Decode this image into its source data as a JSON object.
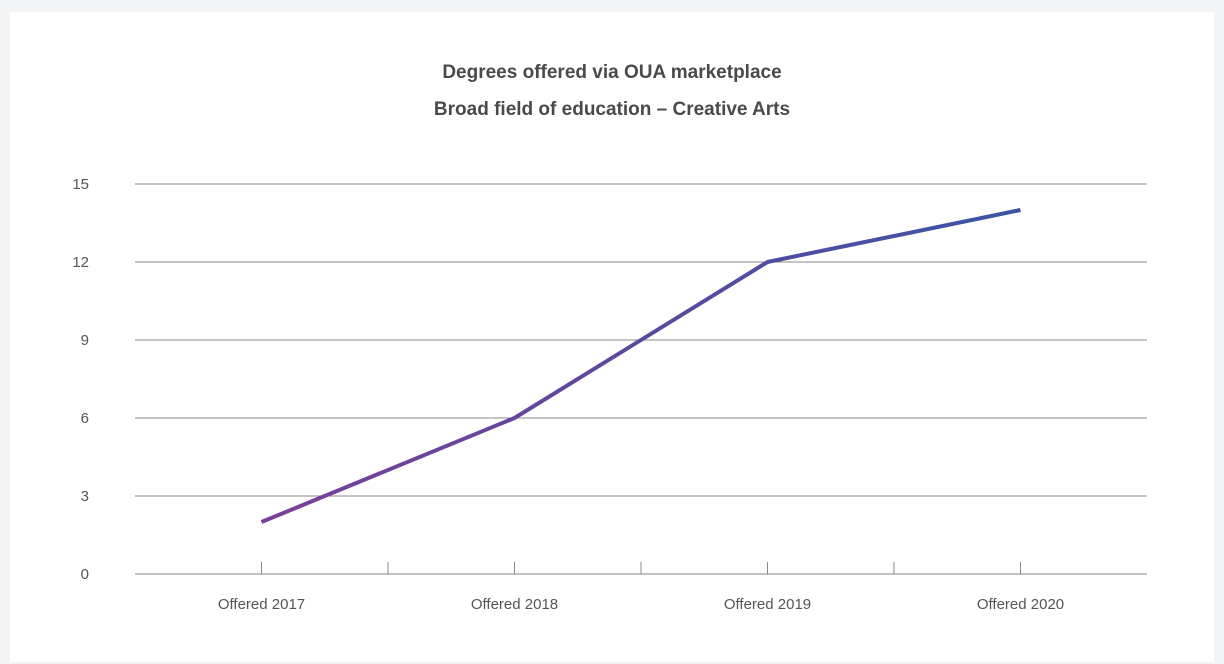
{
  "chart_data": {
    "type": "line",
    "title": "Degrees offered via OUA marketplace",
    "subtitle": "Broad field of education – Creative Arts",
    "categories": [
      "Offered 2017",
      "Offered 2018",
      "Offered 2019",
      "Offered 2020"
    ],
    "series": [
      {
        "values": [
          2,
          6,
          12,
          14
        ]
      }
    ],
    "xlabel": "",
    "ylabel": "",
    "ylim": [
      0,
      15
    ],
    "yticks": [
      0,
      3,
      6,
      9,
      12,
      15
    ],
    "grid": true,
    "legend": "none",
    "colors": {
      "line_start": "#7b3f98",
      "line_end": "#3a55a4",
      "grid": "#8a8a8a",
      "text": "#555555",
      "title": "#4a4a4a"
    }
  }
}
